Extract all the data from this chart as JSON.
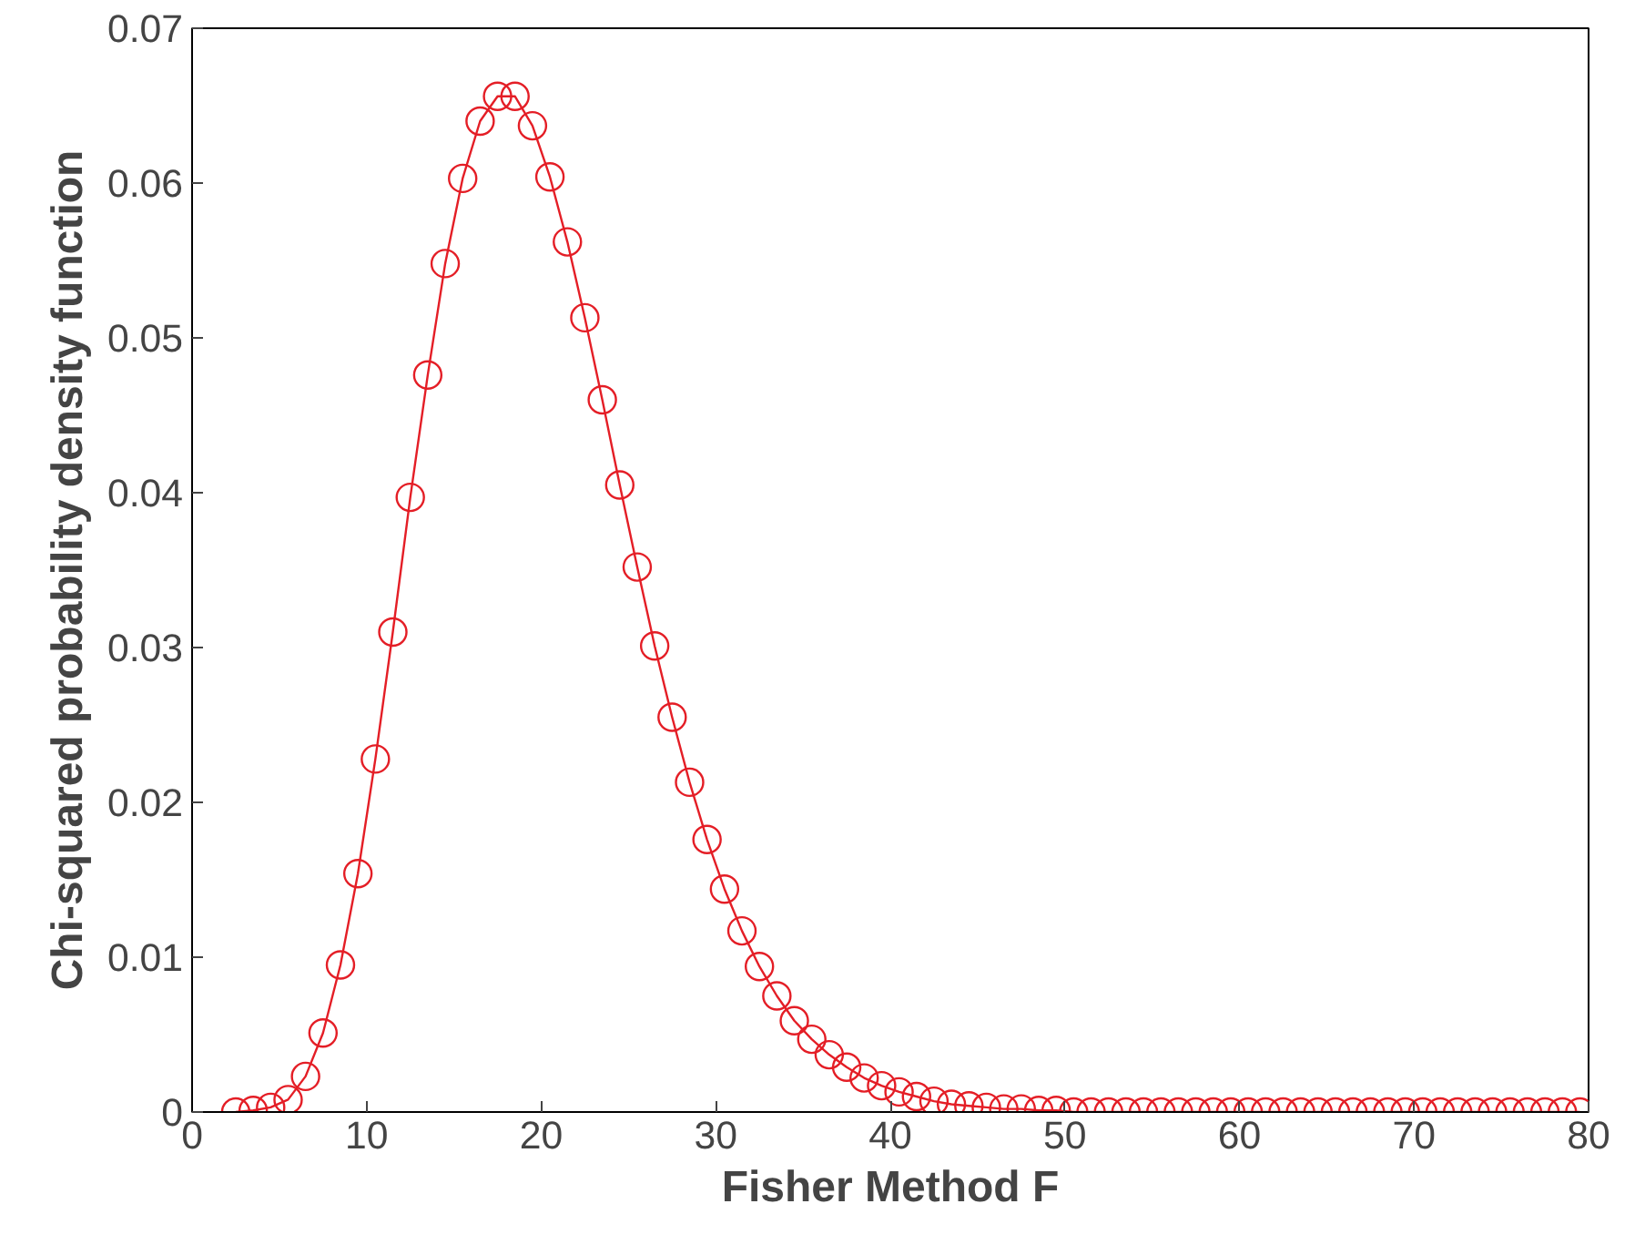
{
  "chart_data": {
    "type": "line",
    "xlabel": "Fisher Method F",
    "ylabel": "Chi-squared probability density function",
    "x": [
      2.5,
      3.5,
      4.5,
      5.5,
      6.5,
      7.5,
      8.5,
      9.5,
      10.5,
      11.5,
      12.5,
      13.5,
      14.5,
      15.5,
      16.5,
      17.5,
      18.5,
      19.5,
      20.5,
      21.5,
      22.5,
      23.5,
      24.5,
      25.5,
      26.5,
      27.5,
      28.5,
      29.5,
      30.5,
      31.5,
      32.5,
      33.5,
      34.5,
      35.5,
      36.5,
      37.5,
      38.5,
      39.5,
      40.5,
      41.5,
      42.5,
      43.5,
      44.5,
      45.5,
      46.5,
      47.5,
      48.5,
      49.5,
      50.5,
      51.5,
      52.5,
      53.5,
      54.5,
      55.5,
      56.5,
      57.5,
      58.5,
      59.5,
      60.5,
      61.5,
      62.5,
      63.5,
      64.5,
      65.5,
      66.5,
      67.5,
      68.5,
      69.5,
      70.5,
      71.5,
      72.5,
      73.5,
      74.5,
      75.5,
      76.5,
      77.5,
      78.5,
      79.5
    ],
    "series": [
      {
        "color": "#e41e26",
        "values": [
          0,
          0.0001,
          0.0003,
          0.0008,
          0.0023,
          0.0051,
          0.0095,
          0.0154,
          0.0228,
          0.031,
          0.0397,
          0.0476,
          0.0548,
          0.0603,
          0.064,
          0.0656,
          0.0656,
          0.0637,
          0.0604,
          0.0562,
          0.0513,
          0.046,
          0.0405,
          0.0352,
          0.0301,
          0.0255,
          0.0213,
          0.0176,
          0.0144,
          0.0117,
          0.0094,
          0.0075,
          0.0059,
          0.0047,
          0.0037,
          0.0029,
          0.0022,
          0.0017,
          0.0013,
          0.001,
          0.0007,
          0.0005,
          0.0004,
          0.0003,
          0.0002,
          0.0002,
          0.0001,
          0.0001,
          0,
          0,
          0,
          0,
          0,
          0,
          0,
          0,
          0,
          0,
          0,
          0,
          0,
          0,
          0,
          0,
          0,
          0,
          0,
          0,
          0,
          0,
          0,
          0,
          0,
          0,
          0,
          0,
          0,
          0
        ]
      }
    ],
    "xlim": [
      0,
      80
    ],
    "xticks": [
      0,
      10,
      20,
      30,
      40,
      50,
      60,
      70,
      80
    ],
    "ylim": [
      0,
      0.07
    ],
    "yticks": [
      0,
      0.01,
      0.02,
      0.03,
      0.04,
      0.05,
      0.06,
      0.07
    ],
    "marker": "circle",
    "line_style": "solid"
  }
}
